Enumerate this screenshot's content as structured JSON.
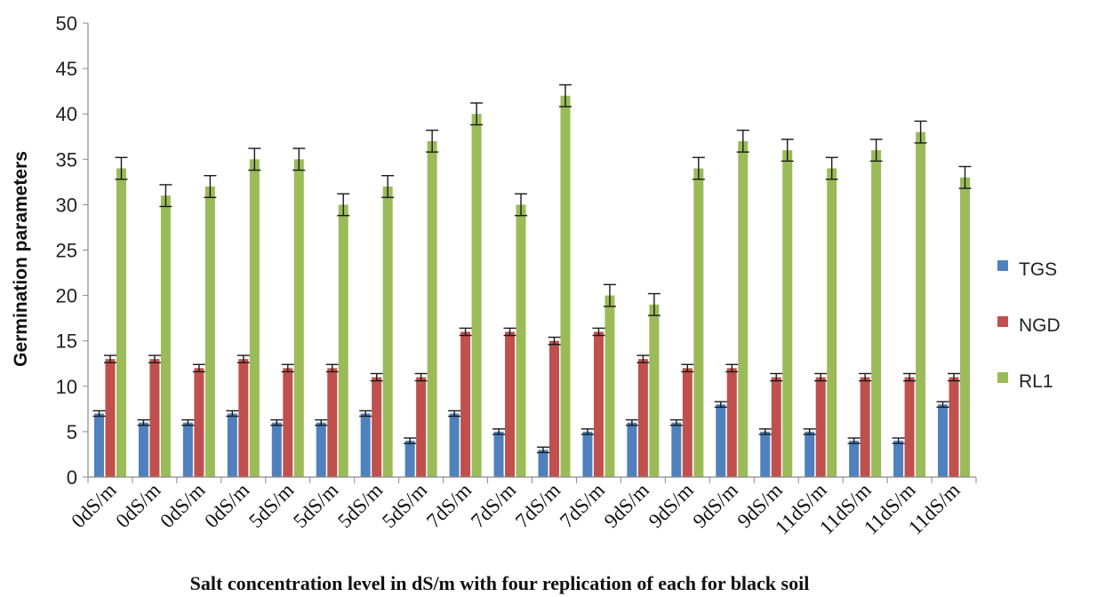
{
  "chart_data": {
    "type": "bar",
    "title": "",
    "xlabel": "Salt concentration level in dS/m with four replication of each for black soil",
    "ylabel": "Germination parameters",
    "ylim": [
      0,
      50
    ],
    "yticks": [
      0,
      5,
      10,
      15,
      20,
      25,
      30,
      35,
      40,
      45,
      50
    ],
    "grid": false,
    "legend_position": "right",
    "categories": [
      "0dS/m",
      "0dS/m",
      "0dS/m",
      "0dS/m",
      "5dS/m",
      "5dS/m",
      "5dS/m",
      "5dS/m",
      "7dS/m",
      "7dS/m",
      "7dS/m",
      "7dS/m",
      "9dS/m",
      "9dS/m",
      "9dS/m",
      "9dS/m",
      "11dS/m",
      "11dS/m",
      "11dS/m",
      "11dS/m"
    ],
    "series": [
      {
        "name": "TGS",
        "color": "#4F81BD",
        "values": [
          7,
          6,
          6,
          7,
          6,
          6,
          7,
          4,
          7,
          5,
          3,
          5,
          6,
          6,
          8,
          5,
          5,
          4,
          4,
          8
        ]
      },
      {
        "name": "NGD",
        "color": "#C0504D",
        "values": [
          13,
          13,
          12,
          13,
          12,
          12,
          11,
          11,
          16,
          16,
          15,
          16,
          13,
          12,
          12,
          11,
          11,
          11,
          11,
          11
        ]
      },
      {
        "name": "RL1",
        "color": "#9BBB59",
        "values": [
          34,
          31,
          32,
          35,
          35,
          30,
          32,
          37,
          40,
          30,
          42,
          20,
          19,
          34,
          37,
          36,
          34,
          36,
          38,
          33
        ]
      }
    ],
    "error_bars": {
      "TGS": [
        0.3,
        0.3,
        0.3,
        0.3,
        0.3,
        0.3,
        0.3,
        0.3,
        0.3,
        0.3,
        0.3,
        0.3,
        0.3,
        0.3,
        0.3,
        0.3,
        0.3,
        0.3,
        0.3,
        0.3
      ],
      "NGD": [
        0.4,
        0.4,
        0.4,
        0.4,
        0.4,
        0.4,
        0.4,
        0.4,
        0.4,
        0.4,
        0.4,
        0.4,
        0.4,
        0.4,
        0.4,
        0.4,
        0.4,
        0.4,
        0.4,
        0.4
      ],
      "RL1": [
        1.2,
        1.2,
        1.2,
        1.2,
        1.2,
        1.2,
        1.2,
        1.2,
        1.2,
        1.2,
        1.2,
        1.2,
        1.2,
        1.2,
        1.2,
        1.2,
        1.2,
        1.2,
        1.2,
        1.2
      ]
    }
  }
}
